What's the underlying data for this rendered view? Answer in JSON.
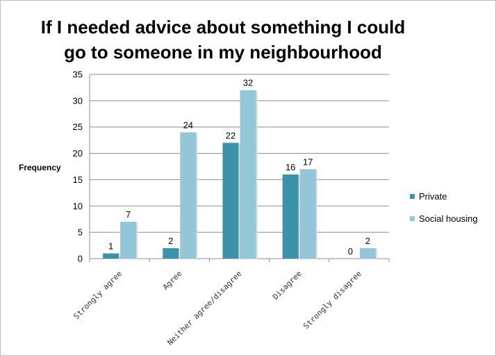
{
  "chart_data": {
    "type": "bar",
    "title": "If I needed advice about something I could go to someone in my neighbourhood",
    "ylabel": "Frequency",
    "xlabel": "",
    "ylim": [
      0,
      35
    ],
    "yticks": [
      0,
      5,
      10,
      15,
      20,
      25,
      30,
      35
    ],
    "grid": true,
    "legend_position": "right",
    "categories": [
      "Strongly agree",
      "Agree",
      "Neither agree/disagree",
      "Disagree",
      "Strongly disagree"
    ],
    "series": [
      {
        "name": "Private",
        "color": "#3a93a8",
        "values": [
          1,
          2,
          22,
          16,
          0
        ]
      },
      {
        "name": "Social housing",
        "color": "#93c6d6",
        "values": [
          7,
          24,
          32,
          17,
          2
        ]
      }
    ]
  }
}
